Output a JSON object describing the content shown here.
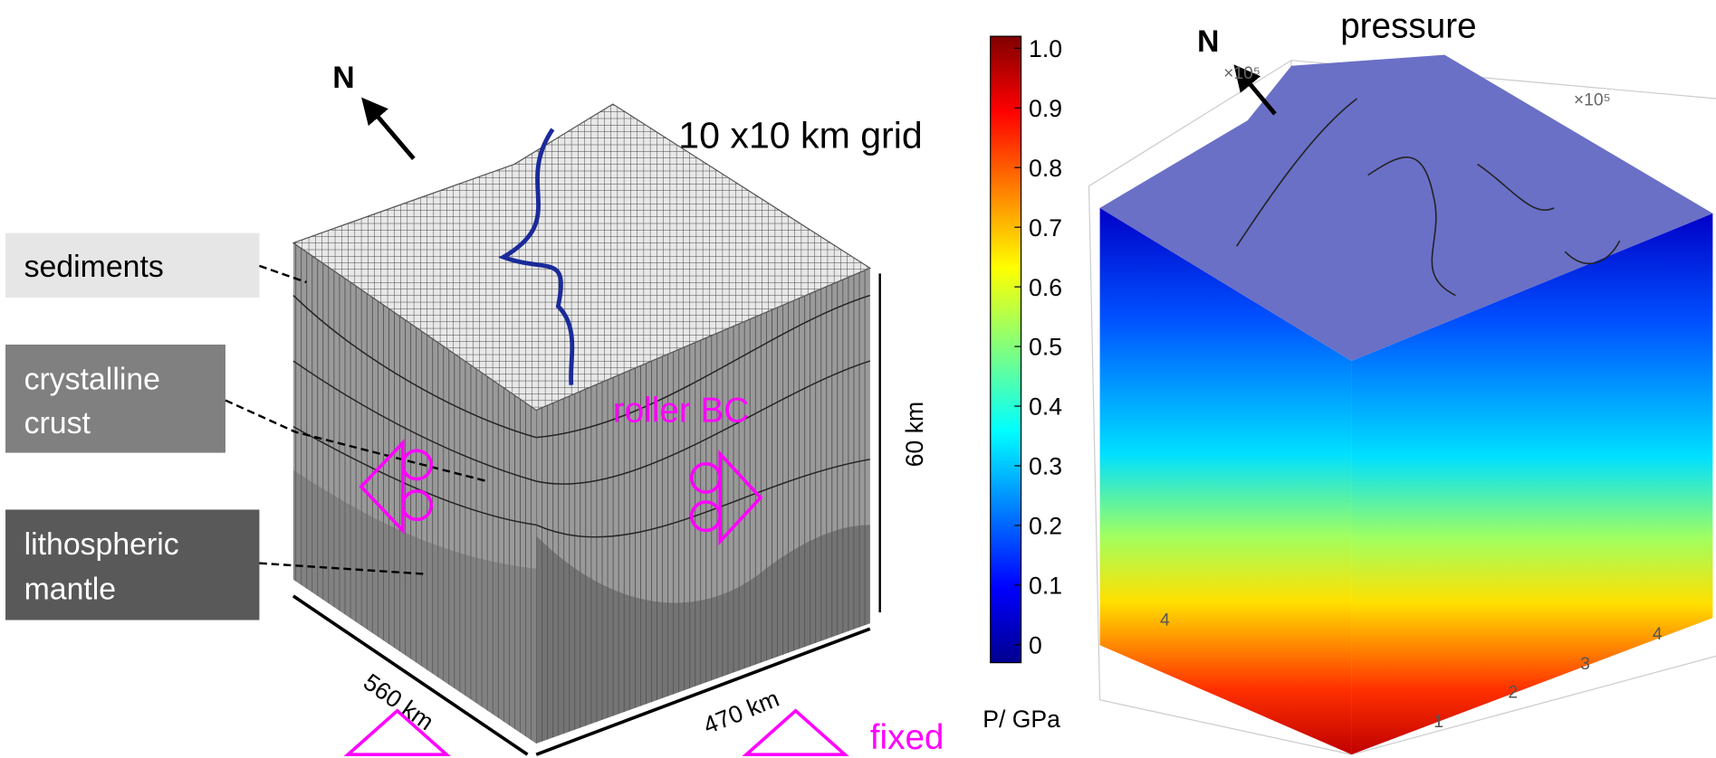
{
  "left_model": {
    "north": "N",
    "grid": "10 x10 km grid",
    "layers": [
      {
        "lines": [
          "sediments"
        ]
      },
      {
        "lines": [
          "crystalline",
          "crust"
        ]
      },
      {
        "lines": [
          "lithospheric",
          "mantle"
        ]
      }
    ],
    "depth": "60 km",
    "length_sw": "560 km",
    "length_se": "470 km",
    "side_bc": "roller BC",
    "bottom_bc": "fixed"
  },
  "colorbar": {
    "title": "P/ GPa",
    "range": [
      -0.03,
      1.02
    ],
    "ticks": [
      {
        "value": 1,
        "label": "1.0"
      },
      0.9,
      0.8,
      0.7,
      0.6,
      0.5,
      0.4,
      0.3,
      0.2,
      0.1,
      0
    ]
  },
  "right_model": {
    "title": "pressure",
    "north": "N",
    "scale_left": "×10⁵",
    "scale_right": "×10⁵",
    "axis_left_tick": "4",
    "axis_right_ticks": [
      "1",
      "2",
      "3",
      "4"
    ]
  }
}
